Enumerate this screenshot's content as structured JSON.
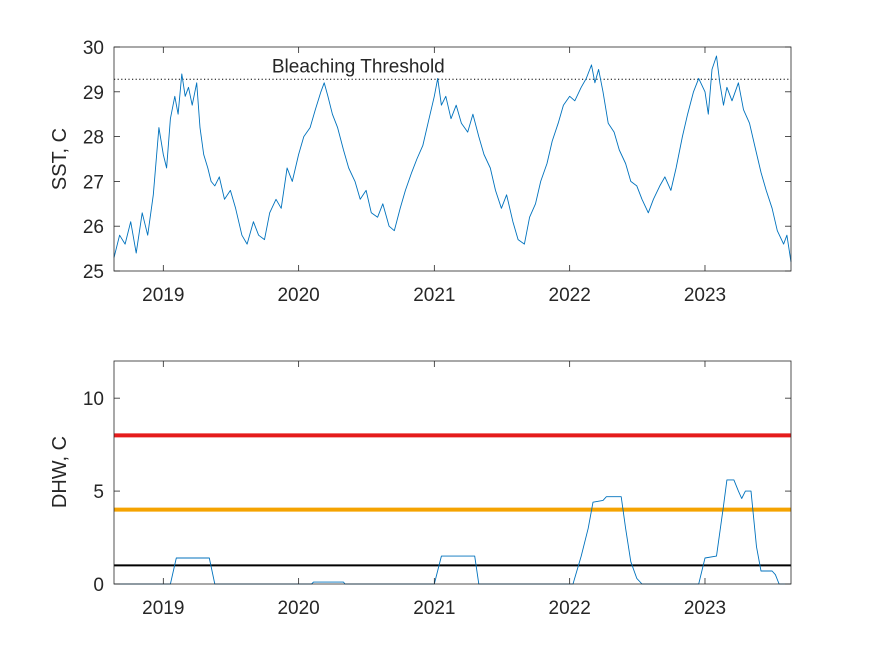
{
  "colors": {
    "series": "#0072BD",
    "axis": "#262626",
    "threshold_red": "#E51C1C",
    "threshold_orange": "#F5A300",
    "threshold_black": "#000000",
    "background": "#ffffff"
  },
  "chart_data": [
    {
      "type": "line",
      "title": "",
      "xlabel": "",
      "ylabel": "SST, C",
      "xlim": [
        "2018-08-21",
        "2023-08-21"
      ],
      "ylim": [
        25,
        30
      ],
      "x_ticks": [
        "2019",
        "2020",
        "2021",
        "2022",
        "2023"
      ],
      "y_ticks": [
        25,
        26,
        27,
        28,
        29,
        30
      ],
      "grid": false,
      "legend": "none",
      "annotations": [
        {
          "text": "Bleaching Threshold",
          "x": "2020-06-10",
          "y": 29.3
        }
      ],
      "reference_lines": [
        {
          "y": 29.28,
          "style": "dotted",
          "color": "#000000"
        }
      ],
      "series": [
        {
          "values_note": "daily sea surface temperature",
          "points": [
            [
              "2018-08-21",
              25.3
            ],
            [
              "2018-09-05",
              25.8
            ],
            [
              "2018-09-20",
              25.6
            ],
            [
              "2018-10-05",
              26.1
            ],
            [
              "2018-10-20",
              25.4
            ],
            [
              "2018-11-05",
              26.3
            ],
            [
              "2018-11-20",
              25.8
            ],
            [
              "2018-12-05",
              26.7
            ],
            [
              "2018-12-20",
              28.2
            ],
            [
              "2019-01-01",
              27.6
            ],
            [
              "2019-01-10",
              27.3
            ],
            [
              "2019-01-20",
              28.4
            ],
            [
              "2019-02-01",
              28.9
            ],
            [
              "2019-02-10",
              28.5
            ],
            [
              "2019-02-20",
              29.4
            ],
            [
              "2019-03-01",
              28.9
            ],
            [
              "2019-03-10",
              29.1
            ],
            [
              "2019-03-20",
              28.7
            ],
            [
              "2019-04-01",
              29.2
            ],
            [
              "2019-04-10",
              28.2
            ],
            [
              "2019-04-20",
              27.6
            ],
            [
              "2019-05-01",
              27.3
            ],
            [
              "2019-05-10",
              27.0
            ],
            [
              "2019-05-20",
              26.9
            ],
            [
              "2019-06-01",
              27.1
            ],
            [
              "2019-06-15",
              26.6
            ],
            [
              "2019-07-01",
              26.8
            ],
            [
              "2019-07-15",
              26.4
            ],
            [
              "2019-08-01",
              25.8
            ],
            [
              "2019-08-15",
              25.6
            ],
            [
              "2019-09-01",
              26.1
            ],
            [
              "2019-09-15",
              25.8
            ],
            [
              "2019-10-01",
              25.7
            ],
            [
              "2019-10-15",
              26.3
            ],
            [
              "2019-11-01",
              26.6
            ],
            [
              "2019-11-15",
              26.4
            ],
            [
              "2019-12-01",
              27.3
            ],
            [
              "2019-12-15",
              27.0
            ],
            [
              "2020-01-01",
              27.6
            ],
            [
              "2020-01-15",
              28.0
            ],
            [
              "2020-02-01",
              28.2
            ],
            [
              "2020-02-15",
              28.6
            ],
            [
              "2020-03-01",
              29.0
            ],
            [
              "2020-03-10",
              29.2
            ],
            [
              "2020-03-20",
              28.9
            ],
            [
              "2020-04-01",
              28.5
            ],
            [
              "2020-04-15",
              28.2
            ],
            [
              "2020-05-01",
              27.7
            ],
            [
              "2020-05-15",
              27.3
            ],
            [
              "2020-06-01",
              27.0
            ],
            [
              "2020-06-15",
              26.6
            ],
            [
              "2020-07-01",
              26.8
            ],
            [
              "2020-07-15",
              26.3
            ],
            [
              "2020-08-01",
              26.2
            ],
            [
              "2020-08-15",
              26.5
            ],
            [
              "2020-09-01",
              26.0
            ],
            [
              "2020-09-15",
              25.9
            ],
            [
              "2020-10-01",
              26.4
            ],
            [
              "2020-10-15",
              26.8
            ],
            [
              "2020-11-01",
              27.2
            ],
            [
              "2020-11-15",
              27.5
            ],
            [
              "2020-12-01",
              27.8
            ],
            [
              "2020-12-15",
              28.3
            ],
            [
              "2021-01-01",
              28.9
            ],
            [
              "2021-01-10",
              29.3
            ],
            [
              "2021-01-20",
              28.7
            ],
            [
              "2021-02-01",
              28.9
            ],
            [
              "2021-02-15",
              28.4
            ],
            [
              "2021-03-01",
              28.7
            ],
            [
              "2021-03-15",
              28.3
            ],
            [
              "2021-04-01",
              28.1
            ],
            [
              "2021-04-15",
              28.5
            ],
            [
              "2021-05-01",
              28.0
            ],
            [
              "2021-05-15",
              27.6
            ],
            [
              "2021-06-01",
              27.3
            ],
            [
              "2021-06-15",
              26.8
            ],
            [
              "2021-07-01",
              26.4
            ],
            [
              "2021-07-15",
              26.7
            ],
            [
              "2021-08-01",
              26.1
            ],
            [
              "2021-08-15",
              25.7
            ],
            [
              "2021-09-01",
              25.6
            ],
            [
              "2021-09-15",
              26.2
            ],
            [
              "2021-10-01",
              26.5
            ],
            [
              "2021-10-15",
              27.0
            ],
            [
              "2021-11-01",
              27.4
            ],
            [
              "2021-11-15",
              27.9
            ],
            [
              "2021-12-01",
              28.3
            ],
            [
              "2021-12-15",
              28.7
            ],
            [
              "2022-01-01",
              28.9
            ],
            [
              "2022-01-15",
              28.8
            ],
            [
              "2022-02-01",
              29.1
            ],
            [
              "2022-02-15",
              29.3
            ],
            [
              "2022-03-01",
              29.6
            ],
            [
              "2022-03-10",
              29.2
            ],
            [
              "2022-03-20",
              29.5
            ],
            [
              "2022-04-01",
              29.0
            ],
            [
              "2022-04-15",
              28.3
            ],
            [
              "2022-05-01",
              28.1
            ],
            [
              "2022-05-15",
              27.7
            ],
            [
              "2022-06-01",
              27.4
            ],
            [
              "2022-06-15",
              27.0
            ],
            [
              "2022-07-01",
              26.9
            ],
            [
              "2022-07-15",
              26.6
            ],
            [
              "2022-08-01",
              26.3
            ],
            [
              "2022-08-15",
              26.6
            ],
            [
              "2022-09-01",
              26.9
            ],
            [
              "2022-09-15",
              27.1
            ],
            [
              "2022-10-01",
              26.8
            ],
            [
              "2022-10-15",
              27.3
            ],
            [
              "2022-11-01",
              28.0
            ],
            [
              "2022-11-15",
              28.5
            ],
            [
              "2022-12-01",
              29.0
            ],
            [
              "2022-12-15",
              29.3
            ],
            [
              "2023-01-01",
              29.0
            ],
            [
              "2023-01-10",
              28.5
            ],
            [
              "2023-01-20",
              29.5
            ],
            [
              "2023-02-01",
              29.8
            ],
            [
              "2023-02-10",
              29.2
            ],
            [
              "2023-02-20",
              28.7
            ],
            [
              "2023-03-01",
              29.1
            ],
            [
              "2023-03-15",
              28.8
            ],
            [
              "2023-04-01",
              29.2
            ],
            [
              "2023-04-15",
              28.6
            ],
            [
              "2023-05-01",
              28.3
            ],
            [
              "2023-05-15",
              27.8
            ],
            [
              "2023-06-01",
              27.2
            ],
            [
              "2023-06-15",
              26.8
            ],
            [
              "2023-07-01",
              26.4
            ],
            [
              "2023-07-15",
              25.9
            ],
            [
              "2023-08-01",
              25.6
            ],
            [
              "2023-08-10",
              25.8
            ],
            [
              "2023-08-21",
              25.2
            ]
          ]
        }
      ]
    },
    {
      "type": "line",
      "title": "",
      "xlabel": "",
      "ylabel": "DHW, C",
      "xlim": [
        "2018-08-21",
        "2023-08-21"
      ],
      "ylim": [
        0,
        12
      ],
      "x_ticks": [
        "2019",
        "2020",
        "2021",
        "2022",
        "2023"
      ],
      "y_ticks": [
        0,
        5,
        10
      ],
      "grid": false,
      "legend": "none",
      "reference_lines": [
        {
          "y": 8,
          "color": "#E51C1C"
        },
        {
          "y": 4,
          "color": "#F5A300"
        },
        {
          "y": 1,
          "color": "#000000"
        }
      ],
      "series": [
        {
          "values_note": "degree heating weeks",
          "points": [
            [
              "2018-08-21",
              0.0
            ],
            [
              "2019-01-20",
              0.0
            ],
            [
              "2019-02-05",
              1.4
            ],
            [
              "2019-05-05",
              1.4
            ],
            [
              "2019-05-20",
              0.0
            ],
            [
              "2020-02-05",
              0.0
            ],
            [
              "2020-02-10",
              0.1
            ],
            [
              "2020-05-01",
              0.1
            ],
            [
              "2020-05-05",
              0.0
            ],
            [
              "2021-01-01",
              0.0
            ],
            [
              "2021-01-20",
              1.5
            ],
            [
              "2021-04-20",
              1.5
            ],
            [
              "2021-05-01",
              0.0
            ],
            [
              "2022-01-10",
              0.0
            ],
            [
              "2022-02-01",
              1.5
            ],
            [
              "2022-02-20",
              3.0
            ],
            [
              "2022-03-05",
              4.4
            ],
            [
              "2022-04-01",
              4.5
            ],
            [
              "2022-04-10",
              4.7
            ],
            [
              "2022-05-20",
              4.7
            ],
            [
              "2022-06-01",
              3.0
            ],
            [
              "2022-06-15",
              1.2
            ],
            [
              "2022-07-01",
              0.3
            ],
            [
              "2022-07-15",
              0.0
            ],
            [
              "2022-12-15",
              0.0
            ],
            [
              "2023-01-01",
              1.4
            ],
            [
              "2023-02-01",
              1.5
            ],
            [
              "2023-02-20",
              4.2
            ],
            [
              "2023-03-01",
              5.6
            ],
            [
              "2023-03-20",
              5.6
            ],
            [
              "2023-04-01",
              5.0
            ],
            [
              "2023-04-10",
              4.6
            ],
            [
              "2023-04-20",
              5.0
            ],
            [
              "2023-05-05",
              5.0
            ],
            [
              "2023-05-20",
              2.0
            ],
            [
              "2023-06-01",
              0.7
            ],
            [
              "2023-07-01",
              0.7
            ],
            [
              "2023-07-10",
              0.5
            ],
            [
              "2023-07-20",
              0.0
            ],
            [
              "2023-08-21",
              0.0
            ]
          ]
        }
      ]
    }
  ]
}
